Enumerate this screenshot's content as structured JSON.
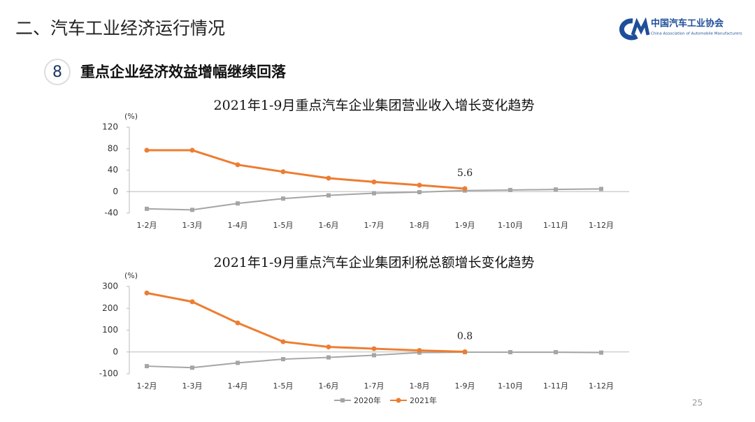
{
  "header": {
    "title": "二、汽车工业经济运行情况",
    "logo_cn": "中国汽车工业协会",
    "logo_en": "China Association of Automobile Manufacturers"
  },
  "section": {
    "number": "8",
    "title": "重点企业经济效益增幅继续回落"
  },
  "page_number": "25",
  "chart_data": [
    {
      "type": "line",
      "title": "2021年1-9月重点汽车企业集团营业收入增长变化趋势",
      "y_label": "(%)",
      "categories": [
        "1-2月",
        "1-3月",
        "1-4月",
        "1-5月",
        "1-6月",
        "1-7月",
        "1-8月",
        "1-9月",
        "1-10月",
        "1-11月",
        "1-12月"
      ],
      "ylim": [
        -40,
        120
      ],
      "yticks": [
        -40,
        0,
        40,
        80,
        120
      ],
      "series": [
        {
          "color": "#a5a5a5",
          "marker": "square",
          "values": [
            -32,
            -34,
            -22,
            -13,
            -7,
            -3,
            -1,
            2,
            3,
            4,
            5
          ]
        },
        {
          "color": "#ed7d31",
          "marker": "circle",
          "values": [
            77,
            77,
            50,
            37,
            25,
            18,
            12,
            5.6,
            null,
            null,
            null
          ],
          "value_labels": [
            null,
            null,
            null,
            null,
            null,
            null,
            null,
            "5.6",
            null,
            null,
            null
          ]
        }
      ]
    },
    {
      "type": "line",
      "title": "2021年1-9月重点汽车企业集团利税总额增长变化趋势",
      "y_label": "(%)",
      "categories": [
        "1-2月",
        "1-3月",
        "1-4月",
        "1-5月",
        "1-6月",
        "1-7月",
        "1-8月",
        "1-9月",
        "1-10月",
        "1-11月",
        "1-12月"
      ],
      "ylim": [
        -100,
        300
      ],
      "yticks": [
        -100,
        0,
        100,
        200,
        300
      ],
      "legend": "bottom",
      "series": [
        {
          "name": "2020年",
          "color": "#a5a5a5",
          "marker": "square",
          "values": [
            -65,
            -72,
            -50,
            -33,
            -25,
            -15,
            -3,
            -1,
            -1,
            -1,
            -3
          ]
        },
        {
          "name": "2021年",
          "color": "#ed7d31",
          "marker": "circle",
          "values": [
            270,
            230,
            133,
            47,
            23,
            15,
            7,
            0.8,
            null,
            null,
            null
          ],
          "value_labels": [
            null,
            null,
            null,
            null,
            null,
            null,
            null,
            "0.8",
            null,
            null,
            null
          ]
        }
      ]
    }
  ]
}
